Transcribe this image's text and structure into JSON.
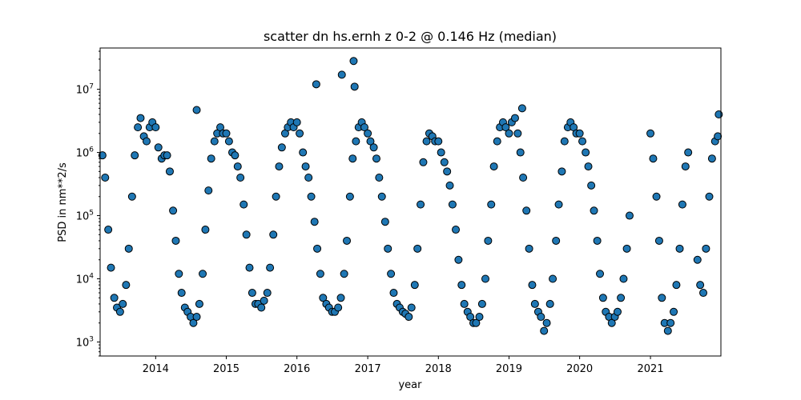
{
  "chart_data": {
    "type": "scatter",
    "title": "scatter dn hs.ernh z 0-2 @ 0.146 Hz (median)",
    "xlabel": "year",
    "ylabel": "PSD in nm**2/s",
    "xlim": [
      "2013-03-20",
      "2021-12-31"
    ],
    "ylim": [
      600,
      45000000
    ],
    "yscale": "log",
    "xticks": [
      "2014",
      "2015",
      "2016",
      "2017",
      "2018",
      "2019",
      "2020",
      "2021"
    ],
    "yticks": [
      {
        "value": 1000,
        "mantissa": "10",
        "exp": "3"
      },
      {
        "value": 10000,
        "mantissa": "10",
        "exp": "4"
      },
      {
        "value": 100000,
        "mantissa": "10",
        "exp": "5"
      },
      {
        "value": 1000000,
        "mantissa": "10",
        "exp": "6"
      },
      {
        "value": 10000000,
        "mantissa": "10",
        "exp": "7"
      }
    ],
    "grid": false,
    "marker_color": "#1f77b4",
    "marker_edge": "#000000",
    "series": [
      {
        "x": [
          "2013-04-01",
          "2013-04-15",
          "2013-05-01",
          "2013-05-15",
          "2013-06-01",
          "2013-06-15",
          "2013-07-01",
          "2013-07-15",
          "2013-08-01",
          "2013-08-15",
          "2013-09-01",
          "2013-09-15",
          "2013-10-01",
          "2013-10-15",
          "2013-11-01",
          "2013-11-15",
          "2013-12-01",
          "2013-12-15",
          "2014-01-01",
          "2014-01-15",
          "2014-02-01",
          "2014-02-15",
          "2014-03-01",
          "2014-03-15",
          "2014-04-01",
          "2014-04-15",
          "2014-05-01",
          "2014-05-15",
          "2014-06-01",
          "2014-06-15",
          "2014-07-01",
          "2014-07-15",
          "2014-08-01",
          "2014-08-15",
          "2014-09-01",
          "2014-09-15",
          "2014-10-01",
          "2014-10-15",
          "2014-11-01",
          "2014-11-15",
          "2014-12-01",
          "2014-12-15",
          "2015-01-01",
          "2015-01-15",
          "2015-02-01",
          "2015-02-15",
          "2015-03-01",
          "2015-03-15",
          "2015-04-01",
          "2015-04-15",
          "2015-05-01",
          "2015-05-15",
          "2015-06-01",
          "2015-06-15",
          "2015-07-01",
          "2015-07-15",
          "2015-08-01",
          "2015-08-15",
          "2015-09-01",
          "2015-09-15",
          "2015-10-01",
          "2015-10-15",
          "2015-11-01",
          "2015-11-15",
          "2015-12-01",
          "2015-12-15",
          "2016-01-01",
          "2016-01-15",
          "2016-02-01",
          "2016-02-15",
          "2016-03-01",
          "2016-03-15",
          "2016-04-01",
          "2016-04-15",
          "2016-05-01",
          "2016-05-15",
          "2016-06-01",
          "2016-06-15",
          "2016-07-01",
          "2016-07-15",
          "2016-08-01",
          "2016-08-15",
          "2016-09-01",
          "2016-09-15",
          "2016-10-01",
          "2016-10-15",
          "2016-11-01",
          "2016-11-15",
          "2016-12-01",
          "2016-12-15",
          "2017-01-01",
          "2017-01-15",
          "2017-02-01",
          "2017-02-15",
          "2017-03-01",
          "2017-03-15",
          "2017-04-01",
          "2017-04-15",
          "2017-05-01",
          "2017-05-15",
          "2017-06-01",
          "2017-06-15",
          "2017-07-01",
          "2017-07-15",
          "2017-08-01",
          "2017-08-15",
          "2017-09-01",
          "2017-09-15",
          "2017-10-01",
          "2017-10-15",
          "2017-11-01",
          "2017-11-15",
          "2017-12-01",
          "2017-12-15",
          "2018-01-01",
          "2018-01-15",
          "2018-02-01",
          "2018-02-15",
          "2018-03-01",
          "2018-03-15",
          "2018-04-01",
          "2018-04-15",
          "2018-05-01",
          "2018-05-15",
          "2018-06-01",
          "2018-06-15",
          "2018-07-01",
          "2018-07-15",
          "2018-08-01",
          "2018-08-15",
          "2018-09-01",
          "2018-09-15",
          "2018-10-01",
          "2018-10-15",
          "2018-11-01",
          "2018-11-15",
          "2018-12-01",
          "2018-12-15",
          "2019-01-01",
          "2019-01-15",
          "2019-02-01",
          "2019-02-15",
          "2019-03-01",
          "2019-03-15",
          "2019-04-01",
          "2019-04-15",
          "2019-05-01",
          "2019-05-15",
          "2019-06-01",
          "2019-06-15",
          "2019-07-01",
          "2019-07-15",
          "2019-08-01",
          "2019-08-15",
          "2019-09-01",
          "2019-09-15",
          "2019-10-01",
          "2019-10-15",
          "2019-11-01",
          "2019-11-15",
          "2019-12-01",
          "2019-12-15",
          "2020-01-01",
          "2020-01-15",
          "2020-02-01",
          "2020-02-15",
          "2020-03-01",
          "2020-03-15",
          "2020-04-01",
          "2020-04-15",
          "2020-05-01",
          "2020-05-15",
          "2020-06-01",
          "2020-06-15",
          "2020-07-01",
          "2020-07-15",
          "2020-08-01",
          "2020-08-15",
          "2020-09-01",
          "2020-09-15",
          "2021-01-01",
          "2021-01-15",
          "2021-02-01",
          "2021-02-15",
          "2021-03-01",
          "2021-03-15",
          "2021-04-01",
          "2021-04-15",
          "2021-05-01",
          "2021-05-15",
          "2021-06-01",
          "2021-06-15",
          "2021-07-01",
          "2021-07-15",
          "2021-09-01",
          "2021-09-15",
          "2021-10-01",
          "2021-10-15",
          "2021-11-01",
          "2021-11-15",
          "2021-12-01",
          "2021-12-15",
          "2016-04-10",
          "2016-08-20",
          "2016-10-20",
          "2016-10-25",
          "2014-08-01",
          "2019-03-10",
          "2021-12-20"
        ],
        "y": [
          900000,
          400000,
          60000,
          15000,
          5000,
          3500,
          3000,
          4000,
          8000,
          30000,
          200000,
          900000,
          2500000,
          3500000,
          1800000,
          1500000,
          2500000,
          3000000,
          2500000,
          1200000,
          800000,
          900000,
          900000,
          500000,
          120000,
          40000,
          12000,
          6000,
          3500,
          3000,
          2500,
          2000,
          2500,
          4000,
          12000,
          60000,
          250000,
          800000,
          1500000,
          2000000,
          2500000,
          2000000,
          2000000,
          1500000,
          1000000,
          900000,
          600000,
          400000,
          150000,
          50000,
          15000,
          6000,
          4000,
          4000,
          3500,
          4500,
          6000,
          15000,
          50000,
          200000,
          600000,
          1200000,
          2000000,
          2500000,
          3000000,
          2500000,
          3000000,
          2000000,
          1000000,
          600000,
          400000,
          200000,
          80000,
          30000,
          12000,
          5000,
          4000,
          3500,
          3000,
          3000,
          3500,
          5000,
          12000,
          40000,
          200000,
          800000,
          1500000,
          2500000,
          3000000,
          2500000,
          2000000,
          1500000,
          1200000,
          800000,
          400000,
          200000,
          80000,
          30000,
          12000,
          6000,
          4000,
          3500,
          3000,
          2800,
          2500,
          3500,
          8000,
          30000,
          150000,
          700000,
          1500000,
          2000000,
          1800000,
          1500000,
          1500000,
          1000000,
          700000,
          500000,
          300000,
          150000,
          60000,
          20000,
          8000,
          4000,
          3000,
          2500,
          2000,
          2000,
          2500,
          4000,
          10000,
          40000,
          150000,
          600000,
          1500000,
          2500000,
          3000000,
          2500000,
          2000000,
          3000000,
          3500000,
          2000000,
          1000000,
          400000,
          120000,
          30000,
          8000,
          4000,
          3000,
          2500,
          1500,
          2000,
          4000,
          10000,
          40000,
          150000,
          500000,
          1500000,
          2500000,
          3000000,
          2500000,
          2000000,
          2000000,
          1500000,
          1000000,
          600000,
          300000,
          120000,
          40000,
          12000,
          5000,
          3000,
          2500,
          2000,
          2500,
          3000,
          5000,
          10000,
          30000,
          100000,
          2000000,
          800000,
          200000,
          40000,
          5000,
          2000,
          1500,
          2000,
          3000,
          8000,
          30000,
          150000,
          600000,
          1000000,
          20000,
          8000,
          6000,
          30000,
          200000,
          800000,
          1500000,
          1800000,
          12000000,
          17000000,
          28000000,
          11000000,
          4700000,
          5000000,
          4000000
        ]
      }
    ]
  }
}
